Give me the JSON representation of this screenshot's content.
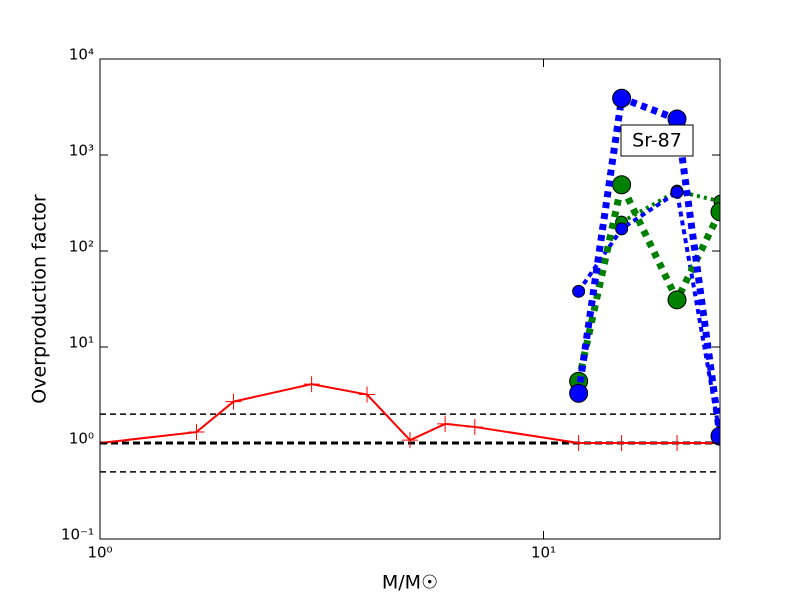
{
  "chart_data": {
    "type": "line",
    "xlog": true,
    "ylog": true,
    "xlabel": "M/M☉",
    "ylabel": "Overproduction factor",
    "annotation": "Sr-87",
    "xlim": [
      1,
      25
    ],
    "ylim": [
      0.1,
      10000
    ],
    "xticks": [
      {
        "value": 1,
        "label": "10⁰"
      },
      {
        "value": 10,
        "label": "10¹"
      }
    ],
    "yticks": [
      {
        "value": 0.1,
        "label": "10⁻¹"
      },
      {
        "value": 1,
        "label": "10⁰"
      },
      {
        "value": 10,
        "label": "10¹"
      },
      {
        "value": 100,
        "label": "10²"
      },
      {
        "value": 1000,
        "label": "10³"
      },
      {
        "value": 10000,
        "label": "10⁴"
      }
    ],
    "hlines": [
      {
        "value": 2,
        "color": "#000000",
        "linewidth": 1.5,
        "dash": "6 4"
      },
      {
        "value": 1,
        "color": "#000000",
        "linewidth": 3,
        "dash": "7 4"
      },
      {
        "value": 0.5,
        "color": "#000000",
        "linewidth": 1.5,
        "dash": "6 4"
      }
    ],
    "series": [
      {
        "color": "#ff0000",
        "linewidth": 2,
        "dash": "none",
        "marker": "plus",
        "x": [
          1,
          1.65,
          2,
          3,
          4,
          5,
          6,
          7,
          12,
          15,
          20,
          25
        ],
        "values": [
          1.0,
          1.3,
          2.7,
          4.1,
          3.2,
          1.07,
          1.58,
          1.47,
          1.0,
          1.0,
          1.0,
          1.0
        ]
      },
      {
        "color": "#008000",
        "linewidth": 4,
        "dash": "3 4",
        "marker": "circle-small",
        "x": [
          15,
          20,
          25
        ],
        "values": [
          200,
          420,
          330
        ]
      },
      {
        "color": "#0000ff",
        "linewidth": 4,
        "dash": "5 4",
        "marker": "circle-small",
        "x": [
          12,
          15,
          20,
          25
        ],
        "values": [
          38,
          170,
          410,
          1.2
        ]
      },
      {
        "color": "#008000",
        "linewidth": 7,
        "dash": "6 6",
        "marker": "circle-big",
        "x": [
          12,
          15,
          20,
          25
        ],
        "values": [
          4.4,
          490,
          31,
          256
        ]
      },
      {
        "color": "#0000ff",
        "linewidth": 7,
        "dash": "6 5",
        "marker": "circle-big",
        "x": [
          12,
          15,
          20,
          25
        ],
        "values": [
          3.3,
          3900,
          2370,
          1.18
        ]
      }
    ]
  }
}
